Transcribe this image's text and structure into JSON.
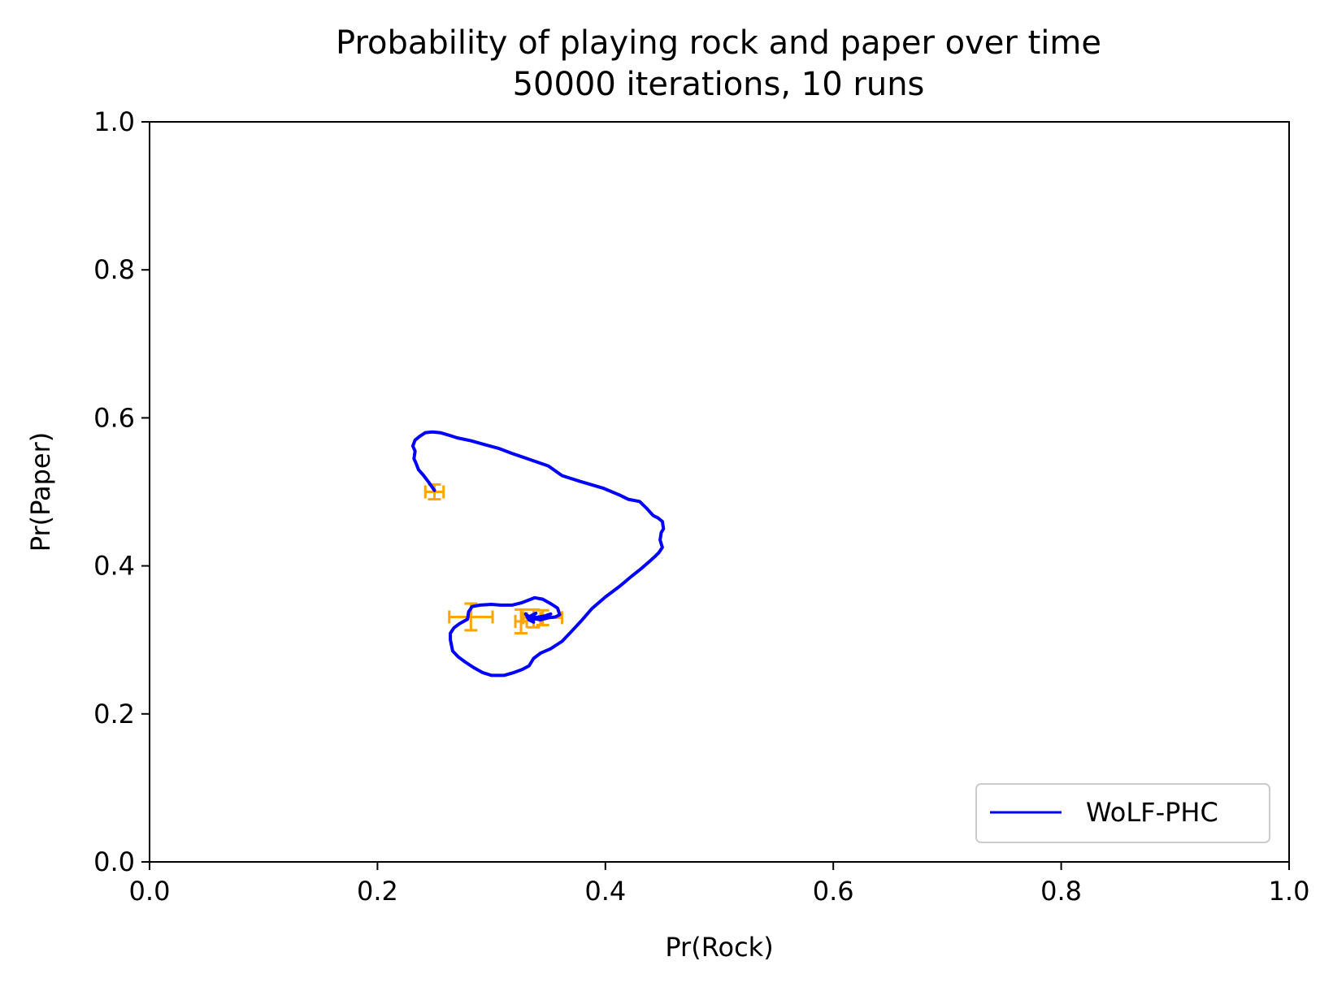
{
  "chart_data": {
    "type": "line",
    "title": "Probability of playing rock and paper over time",
    "subtitle": "50000 iterations, 10 runs",
    "xlabel": "Pr(Rock)",
    "ylabel": "Pr(Paper)",
    "xlim": [
      0.0,
      1.0
    ],
    "ylim": [
      0.0,
      1.0
    ],
    "x_ticks": [
      "0.0",
      "0.2",
      "0.4",
      "0.6",
      "0.8",
      "1.0"
    ],
    "y_ticks": [
      "0.0",
      "0.2",
      "0.4",
      "0.6",
      "0.8",
      "1.0"
    ],
    "grid": false,
    "legend": {
      "position": "lower-right",
      "entries": [
        "WoLF-PHC"
      ]
    },
    "series": [
      {
        "name": "WoLF-PHC",
        "color": "#0000ff",
        "x": [
          0.25,
          0.245,
          0.24,
          0.236,
          0.234,
          0.232,
          0.233,
          0.231,
          0.233,
          0.237,
          0.242,
          0.248,
          0.255,
          0.262,
          0.27,
          0.282,
          0.296,
          0.306,
          0.318,
          0.333,
          0.35,
          0.362,
          0.378,
          0.398,
          0.412,
          0.42,
          0.43,
          0.436,
          0.442,
          0.446,
          0.45,
          0.451,
          0.449,
          0.448,
          0.45,
          0.447,
          0.443,
          0.438,
          0.432,
          0.423,
          0.413,
          0.4,
          0.388,
          0.379,
          0.37,
          0.362,
          0.352,
          0.343,
          0.337,
          0.333,
          0.327,
          0.32,
          0.311,
          0.3,
          0.292,
          0.285,
          0.277,
          0.271,
          0.266,
          0.264,
          0.264,
          0.267,
          0.272,
          0.279,
          0.28,
          0.283,
          0.29,
          0.3,
          0.308,
          0.318,
          0.326,
          0.333,
          0.338,
          0.345,
          0.352,
          0.358,
          0.36,
          0.356,
          0.35,
          0.343,
          0.337,
          0.334,
          0.33,
          0.333,
          0.337,
          0.334,
          0.339,
          0.333,
          0.346,
          0.352
        ],
        "y": [
          0.502,
          0.513,
          0.523,
          0.53,
          0.538,
          0.545,
          0.555,
          0.562,
          0.57,
          0.575,
          0.58,
          0.581,
          0.58,
          0.577,
          0.573,
          0.569,
          0.563,
          0.559,
          0.552,
          0.544,
          0.535,
          0.522,
          0.514,
          0.505,
          0.496,
          0.49,
          0.487,
          0.478,
          0.468,
          0.465,
          0.46,
          0.45,
          0.445,
          0.435,
          0.425,
          0.418,
          0.412,
          0.405,
          0.397,
          0.386,
          0.373,
          0.358,
          0.342,
          0.326,
          0.311,
          0.298,
          0.288,
          0.282,
          0.275,
          0.265,
          0.26,
          0.256,
          0.252,
          0.252,
          0.256,
          0.262,
          0.27,
          0.277,
          0.285,
          0.3,
          0.309,
          0.316,
          0.322,
          0.328,
          0.338,
          0.345,
          0.347,
          0.348,
          0.347,
          0.347,
          0.35,
          0.354,
          0.357,
          0.355,
          0.349,
          0.343,
          0.334,
          0.331,
          0.33,
          0.327,
          0.329,
          0.33,
          0.335,
          0.327,
          0.324,
          0.332,
          0.336,
          0.329,
          0.332,
          0.335
        ]
      }
    ],
    "error_bars": {
      "color": "#ffa500",
      "points": [
        {
          "x": 0.25,
          "y": 0.5,
          "xerr": 0.008,
          "yerr": 0.01
        },
        {
          "x": 0.282,
          "y": 0.331,
          "xerr": 0.019,
          "yerr": 0.018
        },
        {
          "x": 0.326,
          "y": 0.325,
          "xerr": 0.005,
          "yerr": 0.016
        },
        {
          "x": 0.337,
          "y": 0.329,
          "xerr": 0.006,
          "yerr": 0.012
        },
        {
          "x": 0.345,
          "y": 0.33,
          "xerr": 0.017,
          "yerr": 0.01
        }
      ]
    }
  }
}
